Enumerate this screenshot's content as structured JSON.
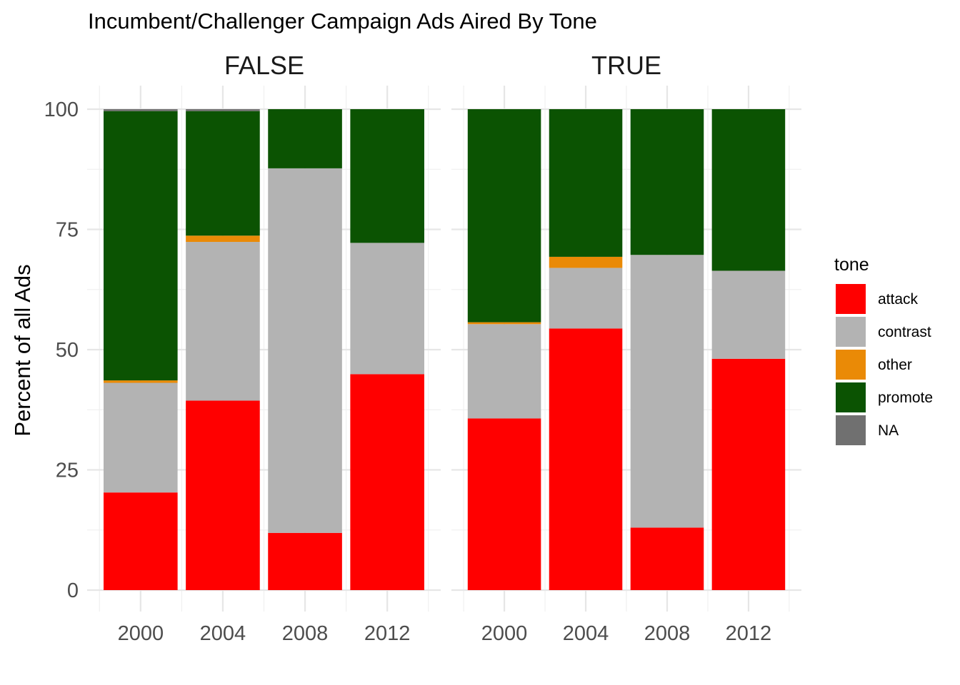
{
  "chart_data": {
    "type": "bar",
    "stacked": true,
    "title": "Incumbent/Challenger Campaign Ads Aired By Tone",
    "xlabel": "",
    "ylabel": "Percent of all Ads",
    "ylim": [
      0,
      100
    ],
    "yticks": [
      0,
      25,
      50,
      75,
      100
    ],
    "grid": true,
    "legend": {
      "title": "tone",
      "position": "right",
      "entries": [
        "attack",
        "contrast",
        "other",
        "promote",
        "NA"
      ]
    },
    "colors": {
      "attack": "#ff0000",
      "contrast": "#b3b3b3",
      "other": "#ea8a06",
      "promote": "#0b5302",
      "NA": "#707070"
    },
    "categories": [
      "2000",
      "2004",
      "2008",
      "2012"
    ],
    "panels": [
      {
        "label": "FALSE",
        "series": [
          {
            "name": "attack",
            "values": [
              20.3,
              39.4,
              11.9,
              44.9
            ]
          },
          {
            "name": "contrast",
            "values": [
              22.8,
              33.0,
              75.8,
              27.3
            ]
          },
          {
            "name": "other",
            "values": [
              0.5,
              1.3,
              0.0,
              0.0
            ]
          },
          {
            "name": "promote",
            "values": [
              56.0,
              25.9,
              12.3,
              27.8
            ]
          },
          {
            "name": "NA",
            "values": [
              0.4,
              0.4,
              0.0,
              0.0
            ]
          }
        ]
      },
      {
        "label": "TRUE",
        "series": [
          {
            "name": "attack",
            "values": [
              35.7,
              54.4,
              13.0,
              48.1
            ]
          },
          {
            "name": "contrast",
            "values": [
              19.6,
              12.6,
              56.7,
              18.3
            ]
          },
          {
            "name": "other",
            "values": [
              0.4,
              2.3,
              0.0,
              0.0
            ]
          },
          {
            "name": "promote",
            "values": [
              44.3,
              30.7,
              30.3,
              33.6
            ]
          },
          {
            "name": "NA",
            "values": [
              0.0,
              0.0,
              0.0,
              0.0
            ]
          }
        ]
      }
    ]
  }
}
